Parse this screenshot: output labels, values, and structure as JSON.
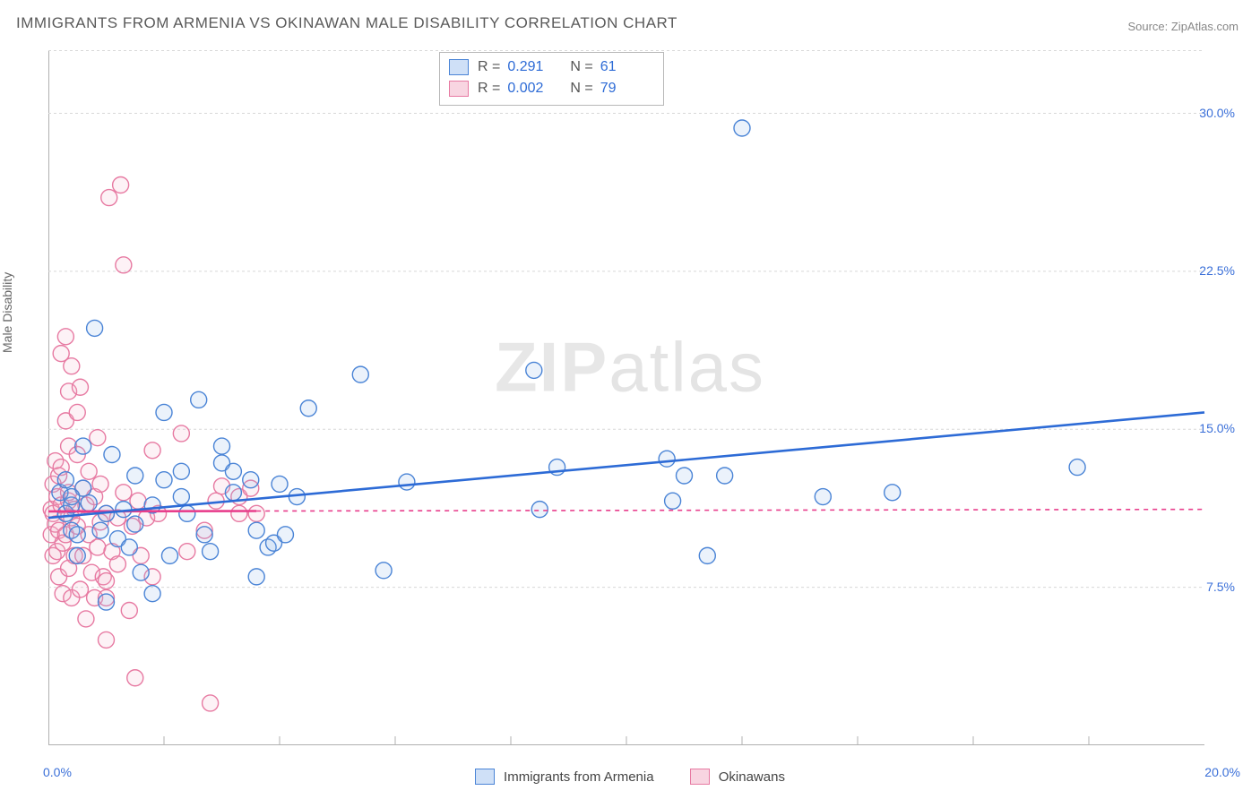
{
  "title": "IMMIGRANTS FROM ARMENIA VS OKINAWAN MALE DISABILITY CORRELATION CHART",
  "source": "Source: ZipAtlas.com",
  "watermark": "ZIPatlas",
  "ylabel": "Male Disability",
  "chart": {
    "type": "scatter",
    "background_color": "#ffffff",
    "grid_color": "#d8d8d8",
    "axis_color": "#b0b0b0",
    "xlim": [
      0.0,
      20.0
    ],
    "ylim": [
      0.0,
      33.0
    ],
    "x_ticks": [
      0.0,
      20.0
    ],
    "x_tick_labels": [
      "0.0%",
      "20.0%"
    ],
    "x_minor_ticks": [
      2.0,
      4.0,
      6.0,
      8.0,
      10.0,
      12.0,
      14.0,
      16.0,
      18.0
    ],
    "y_ticks": [
      7.5,
      15.0,
      22.5,
      30.0
    ],
    "y_tick_labels": [
      "7.5%",
      "15.0%",
      "22.5%",
      "30.0%"
    ],
    "marker_radius": 9,
    "marker_stroke_width": 1.4,
    "marker_fill_opacity": 0.18,
    "trend_line_width": 2.6,
    "trend_dash": "5,5",
    "label_fontsize": 14,
    "label_color": "#3a6fd8",
    "series": [
      {
        "name": "Immigrants from Armenia",
        "color_fill": "#8fb6ea",
        "color_stroke": "#4a84d6",
        "trend_color": "#2d6bd6",
        "trend": {
          "x1": 0.0,
          "y1": 10.8,
          "x2": 20.0,
          "y2": 15.8,
          "dashed": false,
          "dashed_x_from": 20.0
        },
        "pre_trend": {
          "x1": 0.0,
          "y1": 10.8,
          "x2": 20.0,
          "y2": 15.8
        },
        "R": 0.291,
        "N": 61,
        "points": [
          [
            0.2,
            12.0
          ],
          [
            0.3,
            11.0
          ],
          [
            0.4,
            10.2
          ],
          [
            0.4,
            11.4
          ],
          [
            0.5,
            9.0
          ],
          [
            0.3,
            12.6
          ],
          [
            0.8,
            19.8
          ],
          [
            0.6,
            14.2
          ],
          [
            0.6,
            12.2
          ],
          [
            0.5,
            10.0
          ],
          [
            0.7,
            11.5
          ],
          [
            1.0,
            11.0
          ],
          [
            1.0,
            6.8
          ],
          [
            1.1,
            13.8
          ],
          [
            1.2,
            9.8
          ],
          [
            1.5,
            10.5
          ],
          [
            1.5,
            12.8
          ],
          [
            1.6,
            8.2
          ],
          [
            1.8,
            7.2
          ],
          [
            1.4,
            9.4
          ],
          [
            1.8,
            11.4
          ],
          [
            2.0,
            15.8
          ],
          [
            2.0,
            12.6
          ],
          [
            2.1,
            9.0
          ],
          [
            2.3,
            13.0
          ],
          [
            2.3,
            11.8
          ],
          [
            2.6,
            16.4
          ],
          [
            2.7,
            10.0
          ],
          [
            2.8,
            9.2
          ],
          [
            3.0,
            13.4
          ],
          [
            3.0,
            14.2
          ],
          [
            3.2,
            12.0
          ],
          [
            3.2,
            13.0
          ],
          [
            3.5,
            12.6
          ],
          [
            3.8,
            9.4
          ],
          [
            3.6,
            8.0
          ],
          [
            3.6,
            10.2
          ],
          [
            3.9,
            9.6
          ],
          [
            4.0,
            12.4
          ],
          [
            4.1,
            10.0
          ],
          [
            4.3,
            11.8
          ],
          [
            4.5,
            16.0
          ],
          [
            5.4,
            17.6
          ],
          [
            5.8,
            8.3
          ],
          [
            6.2,
            12.5
          ],
          [
            8.4,
            17.8
          ],
          [
            8.5,
            11.2
          ],
          [
            8.8,
            13.2
          ],
          [
            10.7,
            13.6
          ],
          [
            10.8,
            11.6
          ],
          [
            11.0,
            12.8
          ],
          [
            11.4,
            9.0
          ],
          [
            12.0,
            29.3
          ],
          [
            11.7,
            12.8
          ],
          [
            13.4,
            11.8
          ],
          [
            14.6,
            12.0
          ],
          [
            17.8,
            13.2
          ],
          [
            2.4,
            11.0
          ],
          [
            0.9,
            10.2
          ],
          [
            1.3,
            11.2
          ],
          [
            0.4,
            11.8
          ]
        ]
      },
      {
        "name": "Okinawans",
        "color_fill": "#f6b8cc",
        "color_stroke": "#e77aa2",
        "trend_color": "#e83e8c",
        "trend": {
          "x1": 0.0,
          "y1": 11.1,
          "x2": 3.6,
          "y2": 11.12,
          "dashed": false
        },
        "trend_ext": {
          "x1": 3.6,
          "y1": 11.12,
          "x2": 20.0,
          "y2": 11.2,
          "dashed": true
        },
        "R": 0.002,
        "N": 79,
        "points": [
          [
            0.05,
            10.0
          ],
          [
            0.05,
            11.2
          ],
          [
            0.08,
            9.0
          ],
          [
            0.08,
            12.4
          ],
          [
            0.08,
            11.0
          ],
          [
            0.12,
            13.5
          ],
          [
            0.12,
            10.5
          ],
          [
            0.15,
            9.2
          ],
          [
            0.15,
            11.8
          ],
          [
            0.18,
            12.8
          ],
          [
            0.18,
            8.0
          ],
          [
            0.18,
            10.2
          ],
          [
            0.22,
            13.2
          ],
          [
            0.22,
            18.6
          ],
          [
            0.22,
            11.4
          ],
          [
            0.25,
            7.2
          ],
          [
            0.25,
            9.6
          ],
          [
            0.3,
            19.4
          ],
          [
            0.3,
            10.0
          ],
          [
            0.3,
            15.4
          ],
          [
            0.35,
            11.6
          ],
          [
            0.35,
            8.4
          ],
          [
            0.35,
            16.8
          ],
          [
            0.35,
            14.2
          ],
          [
            0.35,
            12.0
          ],
          [
            0.4,
            10.8
          ],
          [
            0.4,
            18.0
          ],
          [
            0.4,
            7.0
          ],
          [
            0.45,
            9.0
          ],
          [
            0.45,
            11.2
          ],
          [
            0.5,
            13.8
          ],
          [
            0.5,
            15.8
          ],
          [
            0.5,
            10.4
          ],
          [
            0.55,
            7.4
          ],
          [
            0.55,
            17.0
          ],
          [
            0.6,
            12.2
          ],
          [
            0.6,
            9.0
          ],
          [
            0.65,
            6.0
          ],
          [
            0.65,
            11.4
          ],
          [
            0.7,
            10.0
          ],
          [
            0.7,
            13.0
          ],
          [
            0.75,
            8.2
          ],
          [
            0.8,
            11.8
          ],
          [
            0.8,
            7.0
          ],
          [
            0.85,
            9.4
          ],
          [
            0.85,
            14.6
          ],
          [
            0.9,
            10.6
          ],
          [
            0.9,
            12.4
          ],
          [
            0.95,
            8.0
          ],
          [
            1.0,
            11.0
          ],
          [
            1.0,
            7.8
          ],
          [
            1.0,
            7.0
          ],
          [
            1.0,
            5.0
          ],
          [
            1.05,
            26.0
          ],
          [
            1.1,
            9.2
          ],
          [
            1.2,
            8.6
          ],
          [
            1.2,
            10.8
          ],
          [
            1.25,
            26.6
          ],
          [
            1.3,
            22.8
          ],
          [
            1.3,
            12.0
          ],
          [
            1.4,
            6.4
          ],
          [
            1.45,
            10.4
          ],
          [
            1.5,
            3.2
          ],
          [
            1.55,
            11.6
          ],
          [
            1.6,
            9.0
          ],
          [
            1.7,
            10.8
          ],
          [
            1.8,
            8.0
          ],
          [
            1.9,
            11.0
          ],
          [
            1.8,
            14.0
          ],
          [
            2.3,
            14.8
          ],
          [
            2.4,
            9.2
          ],
          [
            2.7,
            10.2
          ],
          [
            2.8,
            2.0
          ],
          [
            2.9,
            11.6
          ],
          [
            3.0,
            12.3
          ],
          [
            3.3,
            11.0
          ],
          [
            3.3,
            11.8
          ],
          [
            3.5,
            12.2
          ],
          [
            3.6,
            11.0
          ]
        ]
      }
    ]
  },
  "legend_top": [
    {
      "swatch_fill": "#cfe0f7",
      "swatch_stroke": "#4a84d6",
      "R_label": "R =",
      "R": "0.291",
      "N_label": "N =",
      "N": "61"
    },
    {
      "swatch_fill": "#f8d5e1",
      "swatch_stroke": "#e77aa2",
      "R_label": "R =",
      "R": "0.002",
      "N_label": "N =",
      "N": "79"
    }
  ],
  "legend_bottom": [
    {
      "swatch_fill": "#cfe0f7",
      "swatch_stroke": "#4a84d6",
      "label": "Immigrants from Armenia"
    },
    {
      "swatch_fill": "#f8d5e1",
      "swatch_stroke": "#e77aa2",
      "label": "Okinawans"
    }
  ]
}
